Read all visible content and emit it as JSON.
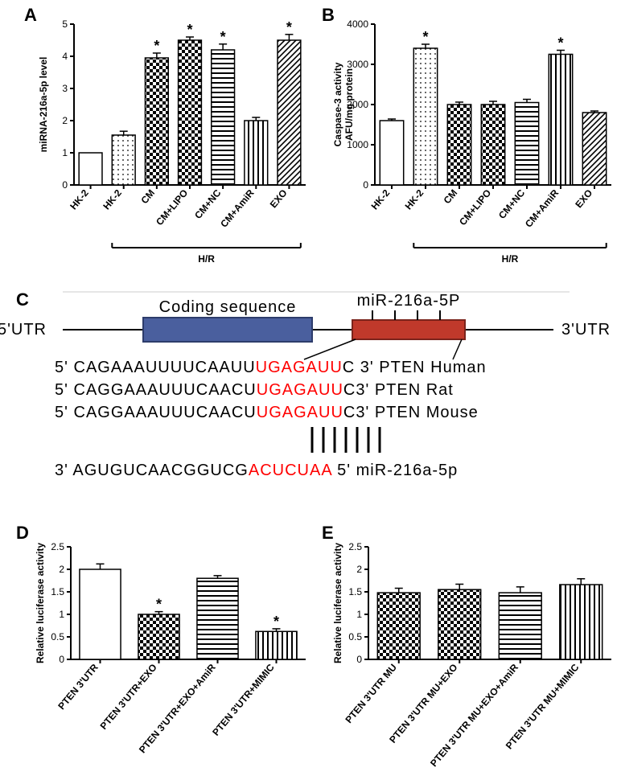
{
  "A": {
    "label": "A",
    "ylabel": "miRNA-216a-5p level",
    "ylim": [
      0,
      5
    ],
    "ytick_step": 1,
    "categories": [
      "HK-2",
      "HK-2",
      "CM",
      "CM+LIPO",
      "CM+NC",
      "CM+AmiR",
      "EXO"
    ],
    "values": [
      1.0,
      1.55,
      3.95,
      4.5,
      4.2,
      2.0,
      4.5
    ],
    "errors": [
      0.0,
      0.12,
      0.15,
      0.1,
      0.18,
      0.1,
      0.18
    ],
    "stars": [
      false,
      false,
      true,
      true,
      true,
      false,
      true
    ],
    "patterns": [
      "plain",
      "dots",
      "checker",
      "checker",
      "hstripe",
      "vstripe",
      "diag"
    ],
    "group_bracket": "H/R",
    "group_from": 1,
    "group_to": 6
  },
  "B": {
    "label": "B",
    "ylabel_top": "Caspase-3 activity",
    "ylabel_bot": "AFU/mg protein",
    "ylim": [
      0,
      4000
    ],
    "ytick_step": 1000,
    "categories": [
      "HK-2",
      "HK-2",
      "CM",
      "CM+LIPO",
      "CM+NC",
      "CM+AmiR",
      "EXO"
    ],
    "values": [
      1600,
      3400,
      2000,
      2000,
      2050,
      3250,
      1800
    ],
    "errors": [
      40,
      100,
      60,
      80,
      80,
      100,
      40
    ],
    "stars": [
      false,
      true,
      false,
      false,
      false,
      true,
      false
    ],
    "patterns": [
      "plain",
      "dots",
      "checker",
      "checker",
      "hstripe",
      "vstripe",
      "diag"
    ],
    "group_bracket": "H/R",
    "group_from": 1,
    "group_to": 6
  },
  "C": {
    "label": "C",
    "coding_label": "Coding sequence",
    "mir_label": "miR-216a-5P",
    "five": "5'UTR",
    "three": "3'UTR",
    "seq": [
      {
        "pre": "5'   CAGAAAUUUUCAAUU",
        "hot": "UGAGAUU",
        "post": "C 3'   PTEN   Human"
      },
      {
        "pre": "5'   CAGGAAAUUUCAACU",
        "hot": "UGAGAUU",
        "post": "C3'   PTEN   Rat"
      },
      {
        "pre": "5'   CAGGAAAUUUCAACU",
        "hot": "UGAGAUU",
        "post": "C3'   PTEN   Mouse"
      }
    ],
    "match_bars": 7,
    "mir_seq_pre": "3'  AGUGUCAACGGUCG",
    "mir_seq_hot": "ACUCUAA",
    "mir_seq_post": " 5' miR-216a-5p"
  },
  "D": {
    "label": "D",
    "ylabel": "Relative luciferase  activity",
    "ylim": [
      0,
      2.5
    ],
    "ytick_step": 0.5,
    "categories": [
      "PTEN 3'UTR",
      "PTEN 3'UTR+EXO",
      "PTEN 3'UTR+EXO+AmiR",
      "PTEN 3'UTR+MIMIC"
    ],
    "values": [
      2.0,
      1.0,
      1.8,
      0.62
    ],
    "errors": [
      0.12,
      0.06,
      0.06,
      0.06
    ],
    "stars": [
      false,
      true,
      false,
      true
    ],
    "patterns": [
      "plain",
      "checker",
      "hstripe",
      "vstripe"
    ]
  },
  "E": {
    "label": "E",
    "ylabel": "Relative luciferase  activity",
    "ylim": [
      0,
      2.5
    ],
    "ytick_step": 0.5,
    "categories": [
      "PTEN 3'UTR MU",
      "PTEN 3'UTR MU+EXO",
      "PTEN 3'UTR MU+EXO+AmiR",
      "PTEN 3'UTR MU+MIMIC"
    ],
    "values": [
      1.48,
      1.55,
      1.48,
      1.66
    ],
    "errors": [
      0.1,
      0.12,
      0.13,
      0.13
    ],
    "stars": [
      false,
      false,
      false,
      false
    ],
    "patterns": [
      "checker",
      "checker",
      "hstripe",
      "vstripe"
    ]
  },
  "colors": {
    "axis": "#000000",
    "bar_outline": "#000000",
    "hot": "#ff0000",
    "coding_fill": "#4a5f9e",
    "coding_stroke": "#2d3c6b",
    "utr_fill": "#c0392b",
    "utr_stroke": "#7b241c"
  }
}
